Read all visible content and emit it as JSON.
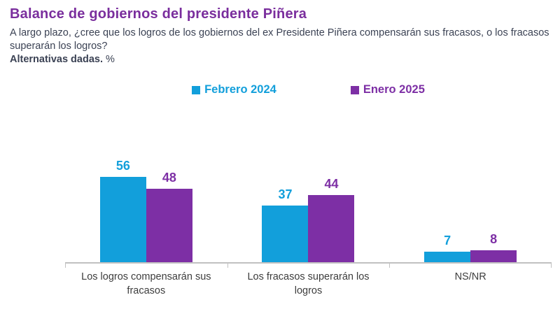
{
  "header": {
    "title": "Balance de gobiernos del presidente Piñera",
    "subtitle": "A largo plazo, ¿cree que los logros de los gobiernos del ex Presidente Piñera compensarán sus fracasos, o los fracasos superarán los logros?",
    "note_bold": "Alternativas dadas.",
    "note_suffix": " %"
  },
  "colors": {
    "series_blue": "#129FDB",
    "series_purple": "#7D2FA5",
    "title": "#7A2E9D",
    "body_text": "#3B4254",
    "category_text": "#3D3D3D",
    "axis": "#C1C1C1"
  },
  "chart_data": {
    "type": "bar",
    "title": "Balance de gobiernos del presidente Piñera",
    "categories": [
      "Los logros compensarán sus fracasos",
      "Los fracasos superarán los logros",
      "NS/NR"
    ],
    "series": [
      {
        "name": "Febrero 2024",
        "color_key": "series_blue",
        "values": [
          56,
          37,
          7
        ]
      },
      {
        "name": "Enero 2025",
        "color_key": "series_purple",
        "values": [
          48,
          44,
          8
        ]
      }
    ],
    "ylim": [
      0,
      60
    ],
    "grid": false,
    "y_axis_shown": false,
    "legend_position": "top-center",
    "value_labels": true,
    "units": "%"
  }
}
